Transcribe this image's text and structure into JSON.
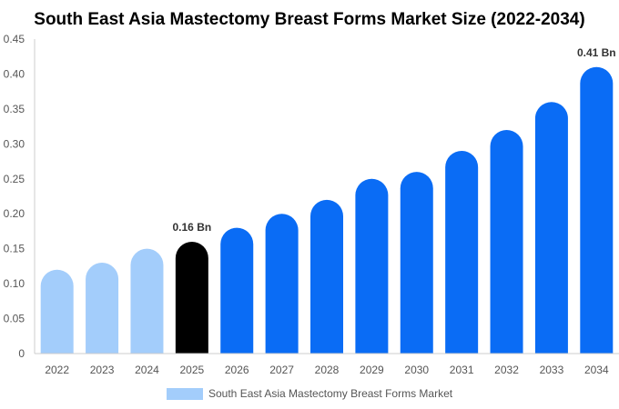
{
  "chart_data": {
    "type": "bar",
    "title": "South East Asia Mastectomy Breast Forms Market Size (2022-2034)",
    "xlabel": "",
    "ylabel": "",
    "categories": [
      "2022",
      "2023",
      "2024",
      "2025",
      "2026",
      "2027",
      "2028",
      "2029",
      "2030",
      "2031",
      "2032",
      "2033",
      "2034"
    ],
    "series": [
      {
        "name": "South East Asia Mastectomy Breast Forms Market",
        "values": [
          0.12,
          0.13,
          0.15,
          0.16,
          0.18,
          0.2,
          0.22,
          0.25,
          0.26,
          0.29,
          0.32,
          0.36,
          0.41
        ]
      }
    ],
    "ylim": [
      0,
      0.45
    ],
    "yticks": [
      "0",
      "0.05",
      "0.10",
      "0.15",
      "0.20",
      "0.25",
      "0.30",
      "0.35",
      "0.40",
      "0.45"
    ],
    "data_labels": [
      {
        "category": "2025",
        "text": "0.16 Bn"
      },
      {
        "category": "2034",
        "text": "0.41 Bn"
      }
    ],
    "grid": false,
    "legend": "bottom-center",
    "colors": {
      "historical": "#a3cdfb",
      "current": "#000000",
      "forecast": "#0a6cf5",
      "legend_swatch": "#a3cdfb"
    }
  }
}
